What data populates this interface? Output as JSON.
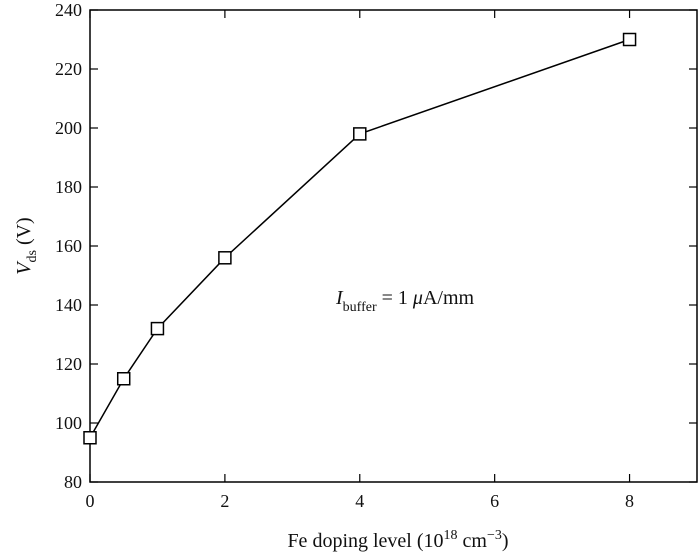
{
  "chart_data": {
    "type": "line",
    "x": [
      0,
      0.5,
      1,
      2,
      4,
      8
    ],
    "series": [
      {
        "values": [
          95,
          115,
          132,
          156,
          198,
          230
        ],
        "marker": "open-square",
        "color": "#000000"
      }
    ],
    "xlim": [
      0,
      9
    ],
    "ylim": [
      80,
      240
    ],
    "xticks": [
      0,
      2,
      4,
      6,
      8
    ],
    "yticks": [
      80,
      100,
      120,
      140,
      160,
      180,
      200,
      220,
      240
    ],
    "xlabel": "Fe doping level (10",
    "xlabel_sup": "18",
    "xlabel_unit": " cm",
    "xlabel_unit_sup": "−3",
    "xlabel_close": ")",
    "ylabel_main": "V",
    "ylabel_sub": "ds",
    "ylabel_unit": " (V)",
    "annotation": {
      "main": "I",
      "sub": "buffer",
      "rest_prefix": " = 1 ",
      "mu": "μ",
      "rest_unit": "A/mm"
    },
    "grid": false,
    "legend": "none"
  }
}
